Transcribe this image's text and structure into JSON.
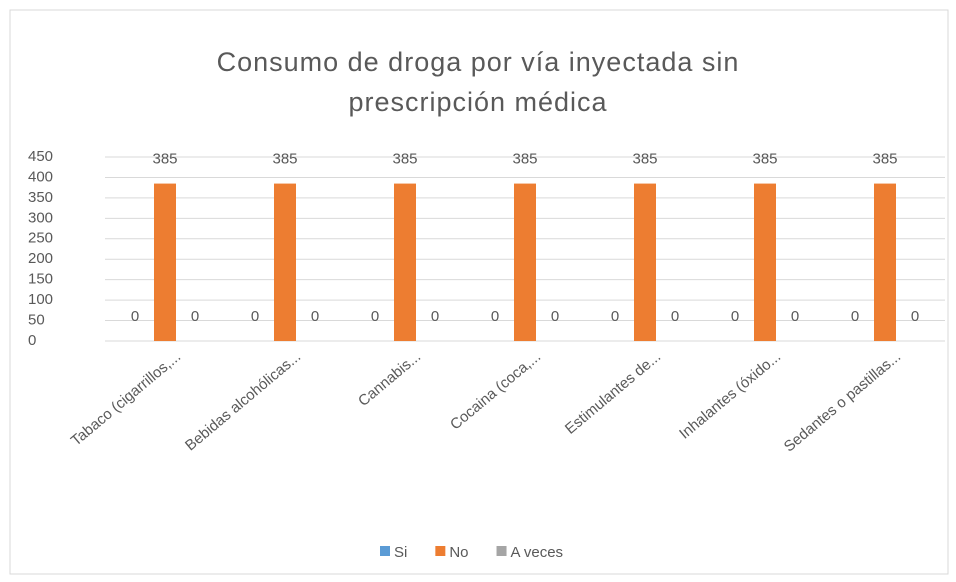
{
  "chart_data": {
    "type": "bar",
    "title": "Consumo de droga por vía inyectada sin prescripción médica",
    "categories": [
      "Tabaco (cigarrillos,...",
      "Bebidas alcohólicas...",
      "Cannabis...",
      "Cocaina (coca,...",
      "Estimulantes de...",
      "Inhalantes (óxido...",
      "Sedantes o pastillas..."
    ],
    "series": [
      {
        "name": "Si",
        "color": "#5b9bd5",
        "values": [
          0,
          0,
          0,
          0,
          0,
          0,
          0
        ]
      },
      {
        "name": "No",
        "color": "#ed7d31",
        "values": [
          385,
          385,
          385,
          385,
          385,
          385,
          385
        ]
      },
      {
        "name": "A veces",
        "color": "#a5a5a5",
        "values": [
          0,
          0,
          0,
          0,
          0,
          0,
          0
        ]
      }
    ],
    "ylim": [
      0,
      450
    ],
    "yticks": [
      0,
      50,
      100,
      150,
      200,
      250,
      300,
      350,
      400,
      450
    ],
    "grid": true,
    "legend": "bottom"
  }
}
